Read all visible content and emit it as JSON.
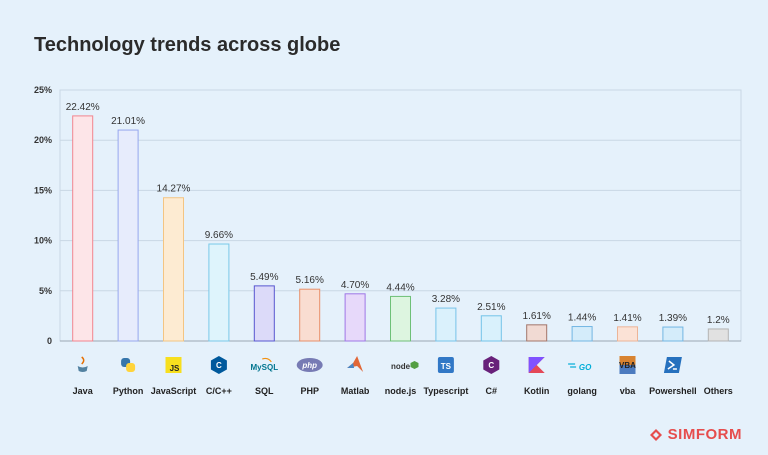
{
  "chart_data": {
    "type": "bar",
    "title": "Technology trends across globe",
    "categories": [
      "Java",
      "Python",
      "JavaScript",
      "C/C++",
      "SQL",
      "PHP",
      "Matlab",
      "node.js",
      "Typescript",
      "C#",
      "Kotlin",
      "golang",
      "vba",
      "Powershell",
      "Others"
    ],
    "values": [
      22.42,
      21.01,
      14.27,
      9.66,
      5.49,
      5.16,
      4.7,
      4.44,
      3.28,
      2.51,
      1.61,
      1.44,
      1.41,
      1.39,
      1.2
    ],
    "display_values": [
      22.42,
      21.01,
      14.27,
      9.66,
      5.49,
      5.16,
      4.7,
      4.44,
      3.28,
      2.51,
      1.61,
      1.44,
      1.41,
      1.39,
      1.2
    ],
    "data_labels": [
      "22.42%",
      "21.01%",
      "14.27%",
      "9.66%",
      "5.49%",
      "5.16%",
      "4.70%",
      "4.44%",
      "3.28%",
      "2.51%",
      "1.61%",
      "1.44%",
      "1.41%",
      "1.39%",
      "1.2%"
    ],
    "yticks": [
      0,
      5,
      10,
      15,
      20,
      25
    ],
    "ytick_labels": [
      "0",
      "5%",
      "10%",
      "15%",
      "20%",
      "25%"
    ],
    "ylim": [
      0,
      25
    ],
    "xlabel": "",
    "ylabel": "",
    "grid": true,
    "bar_fills": [
      "#fde5e8",
      "#e7ecfc",
      "#fdebd2",
      "#def4fc",
      "#dcdaf9",
      "#f9ddd1",
      "#e7d9fa",
      "#ddf5e0",
      "#daf1fc",
      "#d9f1fc",
      "#f1dad3",
      "#d4ecfa",
      "#fbe2d6",
      "#d4ecfa",
      "#e1e1e1"
    ],
    "bar_strokes": [
      "#f2848e",
      "#97a7ee",
      "#f4c582",
      "#7ac9e8",
      "#5756d0",
      "#e8906a",
      "#9f76e5",
      "#6ec077",
      "#77c3e9",
      "#73c3e8",
      "#a27569",
      "#72b6e3",
      "#ecb497",
      "#72b6e3",
      "#b4b4b4"
    ],
    "icons": [
      "java-icon",
      "python-icon",
      "javascript-icon",
      "cpp-icon",
      "mysql-icon",
      "php-icon",
      "matlab-icon",
      "nodejs-icon",
      "typescript-icon",
      "csharp-icon",
      "kotlin-icon",
      "golang-icon",
      "vba-icon",
      "powershell-icon",
      "others-icon"
    ],
    "icon_texts": [
      "",
      "",
      "JS",
      "C",
      "MySQL",
      "php",
      "",
      "node",
      "TS",
      "C",
      "",
      "GO",
      "VBA",
      "",
      ""
    ]
  },
  "brand": {
    "name": "SIMFORM",
    "color": "#e64d4d"
  }
}
